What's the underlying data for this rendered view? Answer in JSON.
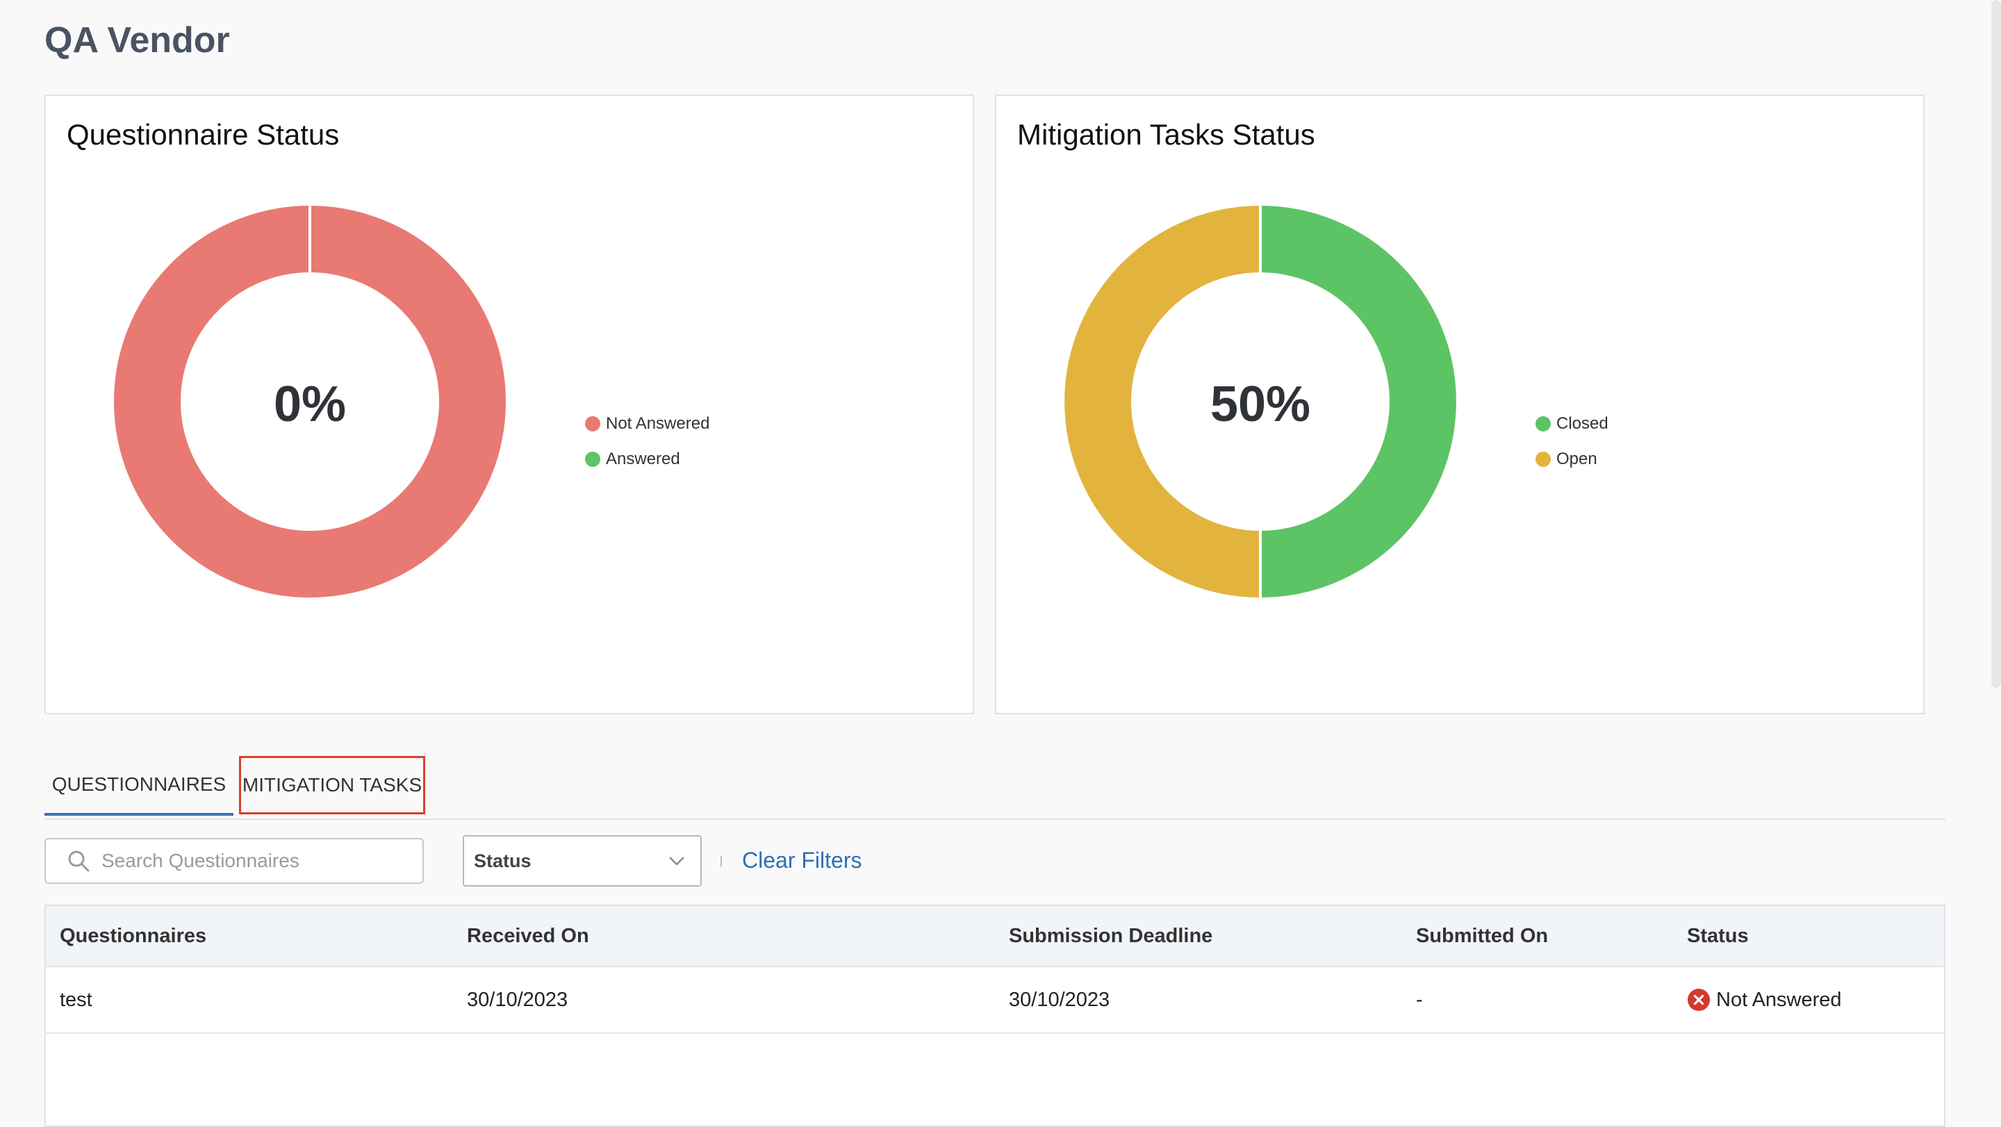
{
  "page": {
    "title": "QA Vendor"
  },
  "cards": {
    "questionnaire": {
      "title": "Questionnaire Status",
      "center_label": "0%",
      "legend": [
        {
          "label": "Not Answered",
          "color": "#e87a73"
        },
        {
          "label": "Answered",
          "color": "#5cc465"
        }
      ]
    },
    "mitigation": {
      "title": "Mitigation Tasks Status",
      "center_label": "50%",
      "legend": [
        {
          "label": "Closed",
          "color": "#5cc465"
        },
        {
          "label": "Open",
          "color": "#e2b43d"
        }
      ]
    }
  },
  "chart_data": [
    {
      "type": "pie",
      "title": "Questionnaire Status",
      "categories": [
        "Not Answered",
        "Answered"
      ],
      "values": [
        1,
        0
      ],
      "colors": [
        "#e87a73",
        "#5cc465"
      ],
      "center_label": "0%"
    },
    {
      "type": "pie",
      "title": "Mitigation Tasks Status",
      "categories": [
        "Closed",
        "Open"
      ],
      "values": [
        1,
        1
      ],
      "colors": [
        "#5cc465",
        "#e2b43d"
      ],
      "center_label": "50%"
    }
  ],
  "tabs": [
    {
      "label": "QUESTIONNAIRES",
      "active": true
    },
    {
      "label": "MITIGATION TASKS",
      "active": false
    }
  ],
  "filters": {
    "search_placeholder": "Search Questionnaires",
    "status_label": "Status",
    "clear_label": "Clear Filters"
  },
  "table": {
    "headers": [
      "Questionnaires",
      "Received On",
      "Submission Deadline",
      "Submitted On",
      "Status"
    ],
    "rows": [
      {
        "questionnaire": "test",
        "received_on": "30/10/2023",
        "deadline": "30/10/2023",
        "submitted_on": "-",
        "status": "Not Answered"
      }
    ]
  },
  "colors": {
    "accent": "#3f74b5",
    "highlight": "#d9402c",
    "link": "#2e6fb5",
    "status_error": "#d43a2f"
  }
}
